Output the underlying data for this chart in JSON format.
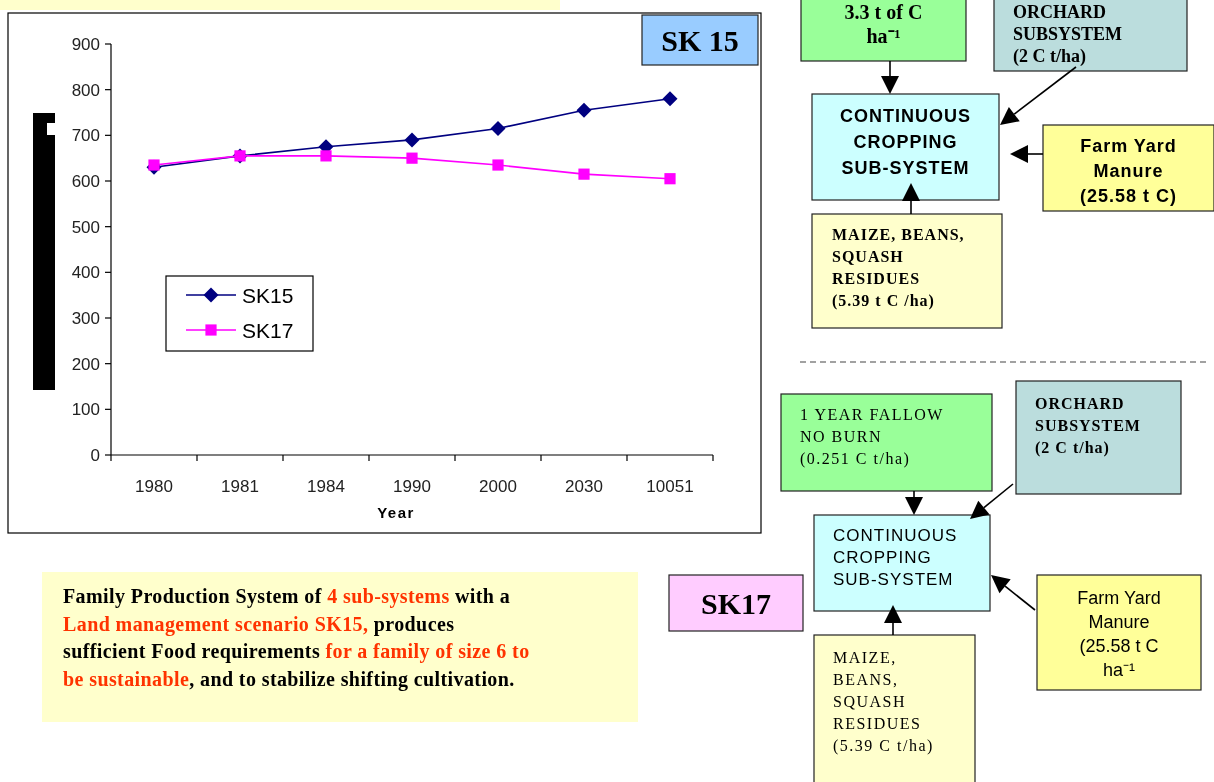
{
  "chart_data": [
    {
      "type": "line",
      "categories": [
        "1980",
        "1981",
        "1984",
        "1990",
        "2000",
        "2030",
        "10051"
      ],
      "xlabel": "Year",
      "ylim": [
        0,
        900
      ],
      "yticks": [
        0,
        100,
        200,
        300,
        400,
        500,
        600,
        700,
        800,
        900
      ],
      "legend": "left",
      "series": [
        {
          "name": "SK15",
          "color": "#000080",
          "marker": "diamond",
          "values": [
            630,
            655,
            675,
            690,
            715,
            755,
            780
          ]
        },
        {
          "name": "SK17",
          "color": "#ff00ff",
          "marker": "square",
          "values": [
            635,
            655,
            655,
            650,
            635,
            615,
            605
          ]
        }
      ]
    },
    {
      "type": "other",
      "title": "SK 15",
      "annotations": [
        "3.3 t of C\nha⁻¹",
        "ORCHARD\nSUBSYSTEM\n(2 C t/ha)",
        "CONTINUOUS\nCROPPING\nSUB-SYSTEM",
        "Farm Yard\nManure\n(25.58 t C)",
        "MAIZE, BEANS,\nSQUASH\nRESIDUES\n(5.39 t C /ha)"
      ]
    },
    {
      "type": "other",
      "title": "SK17",
      "annotations": [
        "1 YEAR FALLOW\nNO BURN\n(0.251 C t/ha)",
        "ORCHARD\nSUBSYSTEM\n(2 C t/ha)",
        "CONTINUOUS\nCROPPING\nSUB-SYSTEM",
        "Farm Yard\nManure\n(25.58 t C\nha⁻¹",
        "MAIZE,\nBEANS,\nSQUASH\nRESIDUES\n(5.39 C t/ha)"
      ]
    },
    {
      "type": "other",
      "annotations": [
        "Family Production System of ",
        "4 sub-systems",
        " with a\n",
        "Land management scenario SK15,",
        " produces\n",
        "sufficient Food requirements ",
        "for a family of size 6 to\n",
        "be sustainable",
        ", and to stabilize shifting cultivation."
      ]
    }
  ]
}
